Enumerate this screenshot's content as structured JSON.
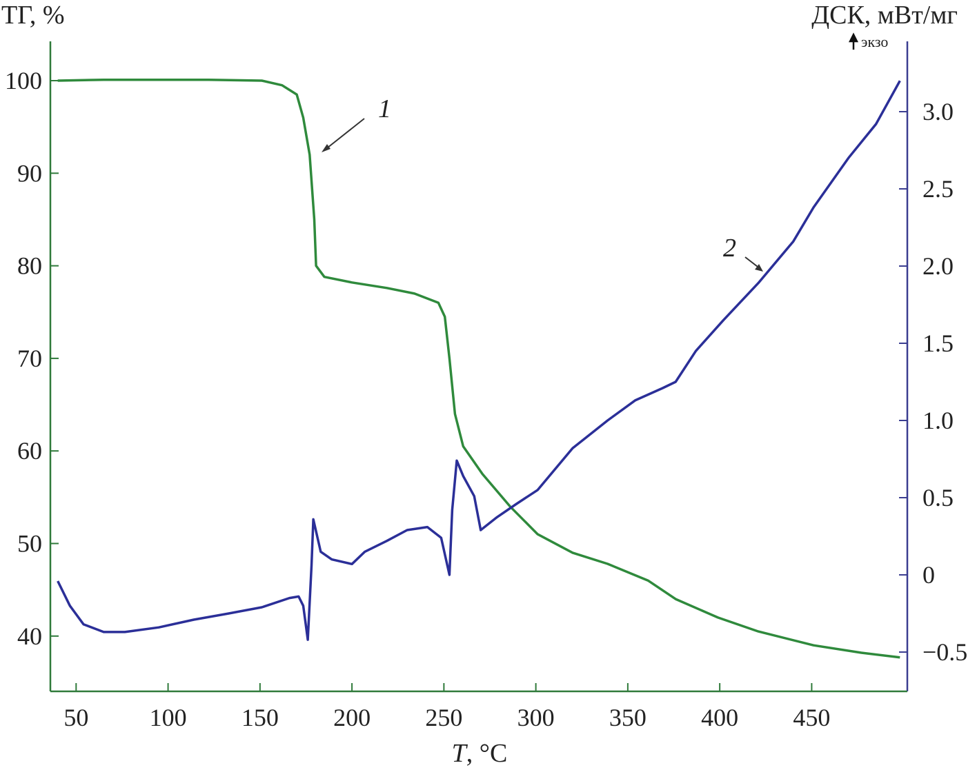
{
  "chart_data": {
    "type": "line",
    "xlabel_italic": "T",
    "xlabel_rest": ", °C",
    "ylabel_left": "ТГ, %",
    "ylabel_right": "ДСК, мВт/мг",
    "right_note": "экзо",
    "xlim": [
      36,
      502
    ],
    "ylim_left": [
      34,
      104
    ],
    "ylim_right": [
      -0.75,
      3.45
    ],
    "x_ticks": [
      50,
      100,
      150,
      200,
      250,
      300,
      350,
      400,
      450
    ],
    "y_ticks_left": [
      40,
      50,
      60,
      70,
      80,
      90,
      100
    ],
    "y_ticks_right": [
      "−0.5",
      "0",
      "0.5",
      "1.0",
      "1.5",
      "2.0",
      "2.5",
      "3.0"
    ],
    "y_ticks_right_values": [
      -0.5,
      0,
      0.5,
      1.0,
      1.5,
      2.0,
      2.5,
      3.0
    ],
    "grid": false,
    "colors": {
      "tg": "#2f8a3c",
      "dsc": "#2b2f98",
      "axis_left": "#2f7a3a",
      "axis_right": "#3a3d90"
    },
    "series": [
      {
        "name": "1",
        "axis": "left",
        "x": [
          40,
          65,
          122,
          151,
          162,
          170,
          173.5,
          177,
          179.5,
          180.5,
          185,
          200,
          219,
          234,
          247,
          250.5,
          253,
          256,
          260.5,
          271,
          286,
          301,
          320,
          339,
          361,
          376,
          399,
          421,
          451,
          477,
          498
        ],
        "y": [
          100,
          100.1,
          100.1,
          100,
          99.5,
          98.5,
          96,
          92,
          85,
          80,
          78.8,
          78.2,
          77.6,
          77,
          76,
          74.5,
          70,
          64,
          60.5,
          57.5,
          54,
          51,
          49,
          47.8,
          46,
          44,
          42,
          40.5,
          39,
          38.2,
          37.7
        ]
      },
      {
        "name": "2",
        "axis": "right",
        "x": [
          40,
          46.6,
          54,
          65,
          76.5,
          95,
          114,
          133,
          151,
          166,
          171,
          173.5,
          176,
          178,
          179,
          183,
          189,
          200,
          207,
          219,
          230,
          241,
          248.5,
          253,
          254.5,
          257,
          260.5,
          266.5,
          270,
          278.5,
          289.5,
          301,
          320,
          339,
          354,
          369,
          376,
          387,
          402,
          421,
          440,
          451,
          470,
          485,
          498
        ],
        "y": [
          -0.04,
          -0.2,
          -0.32,
          -0.37,
          -0.37,
          -0.34,
          -0.29,
          -0.25,
          -0.21,
          -0.15,
          -0.14,
          -0.2,
          -0.42,
          0.06,
          0.36,
          0.15,
          0.1,
          0.07,
          0.15,
          0.22,
          0.29,
          0.31,
          0.24,
          0,
          0.42,
          0.74,
          0.64,
          0.51,
          0.29,
          0.37,
          0.46,
          0.55,
          0.82,
          1.0,
          1.13,
          1.21,
          1.25,
          1.45,
          1.65,
          1.89,
          2.16,
          2.38,
          2.7,
          2.92,
          3.2
        ]
      }
    ]
  }
}
